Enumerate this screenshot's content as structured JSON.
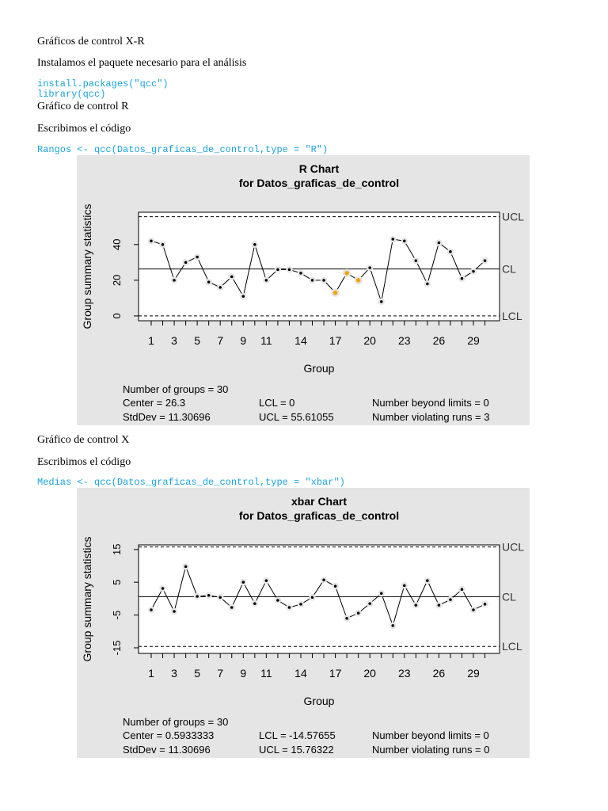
{
  "blocks": [
    {
      "style": "text",
      "text": "Gráficos de control X-R"
    },
    {
      "style": "text",
      "text": "Instalamos el paquete necesario para el análisis"
    },
    {
      "style": "code",
      "text": "install.packages(\"qcc\")"
    },
    {
      "style": "code",
      "text": "library(qcc)"
    },
    {
      "style": "text",
      "text": "Gráfico de control R"
    },
    {
      "style": "text",
      "text": "Escribimos el código"
    },
    {
      "style": "code",
      "text": "Rangos <- qcc(Datos_graficas_de_control,type = \"R\")"
    },
    {
      "style": "text",
      "text": "Gráfico de control X"
    },
    {
      "style": "text",
      "text": "Escribimos el código"
    },
    {
      "style": "code",
      "text": "Medias <- qcc(Datos_graficas_de_control,type = \"xbar\")"
    }
  ],
  "chart_data": [
    {
      "type": "line",
      "title": "R Chart",
      "subtitle": "for Datos_graficas_de_control",
      "x_label": "Group",
      "y_label": "Group summary statistics",
      "categories": [
        1,
        null,
        3,
        null,
        5,
        null,
        7,
        null,
        9,
        null,
        11,
        null,
        null,
        14,
        null,
        null,
        17,
        null,
        null,
        20,
        null,
        null,
        23,
        null,
        null,
        26,
        null,
        null,
        29,
        null
      ],
      "values": [
        42,
        40,
        20,
        30,
        33,
        19,
        16,
        22,
        11,
        40,
        20,
        26,
        26,
        24,
        20,
        20,
        13,
        24,
        20,
        27,
        8,
        43,
        42,
        31,
        18,
        41,
        36,
        21,
        25,
        31
      ],
      "highlight": [
        false,
        false,
        false,
        false,
        false,
        false,
        false,
        false,
        false,
        false,
        false,
        false,
        false,
        false,
        false,
        false,
        true,
        true,
        true,
        false,
        false,
        false,
        false,
        false,
        false,
        false,
        false,
        false,
        false,
        false
      ],
      "color": "#000000",
      "highlight_color": "#f5a300",
      "ylim": [
        -2.7,
        58.1
      ],
      "yticks": [
        0,
        20,
        40
      ],
      "limits": [
        {
          "label": "UCL",
          "value": 55.61055
        },
        {
          "label": "CL",
          "value": 26.3
        },
        {
          "label": "LCL",
          "value": 0
        }
      ],
      "stats": [
        [
          "Number of groups = 30"
        ],
        [
          "Center = 26.3",
          "LCL = 0",
          "Number beyond limits = 0"
        ],
        [
          "StdDev = 11.30696",
          "UCL = 55.61055",
          "Number violating runs = 3"
        ]
      ]
    },
    {
      "type": "line",
      "title": "xbar Chart",
      "subtitle": "for Datos_graficas_de_control",
      "x_label": "Group",
      "y_label": "Group summary statistics",
      "categories": [
        1,
        null,
        3,
        null,
        5,
        null,
        7,
        null,
        9,
        null,
        11,
        null,
        null,
        14,
        null,
        null,
        17,
        null,
        null,
        20,
        null,
        null,
        23,
        null,
        null,
        26,
        null,
        null,
        29,
        null
      ],
      "values": [
        -3.4,
        3.1,
        -3.9,
        9.8,
        0.7,
        1.0,
        0.4,
        -2.7,
        5.0,
        -1.5,
        5.5,
        -0.5,
        -2.7,
        -1.7,
        0.4,
        5.7,
        3.8,
        -6.0,
        -4.4,
        -1.5,
        1.6,
        -8.2,
        4.0,
        -2.0,
        5.5,
        -2.0,
        -0.3,
        2.8,
        -3.4,
        -1.7
      ],
      "highlight": [
        false,
        false,
        false,
        false,
        false,
        false,
        false,
        false,
        false,
        false,
        false,
        false,
        false,
        false,
        false,
        false,
        false,
        false,
        false,
        false,
        false,
        false,
        false,
        false,
        false,
        false,
        false,
        false,
        false,
        false
      ],
      "color": "#000000",
      "highlight_color": "#f5a300",
      "ylim": [
        -16.7,
        16.4
      ],
      "yticks": [
        -15,
        -5,
        5,
        15
      ],
      "limits": [
        {
          "label": "UCL",
          "value": 15.76322
        },
        {
          "label": "CL",
          "value": 0.5933333
        },
        {
          "label": "LCL",
          "value": -14.57655
        }
      ],
      "stats": [
        [
          "Number of groups = 30"
        ],
        [
          "Center = 0.5933333",
          "LCL = -14.57655",
          "Number beyond limits = 0"
        ],
        [
          "StdDev = 11.30696",
          "UCL = 15.76322",
          "Number violating runs = 0"
        ]
      ]
    }
  ]
}
